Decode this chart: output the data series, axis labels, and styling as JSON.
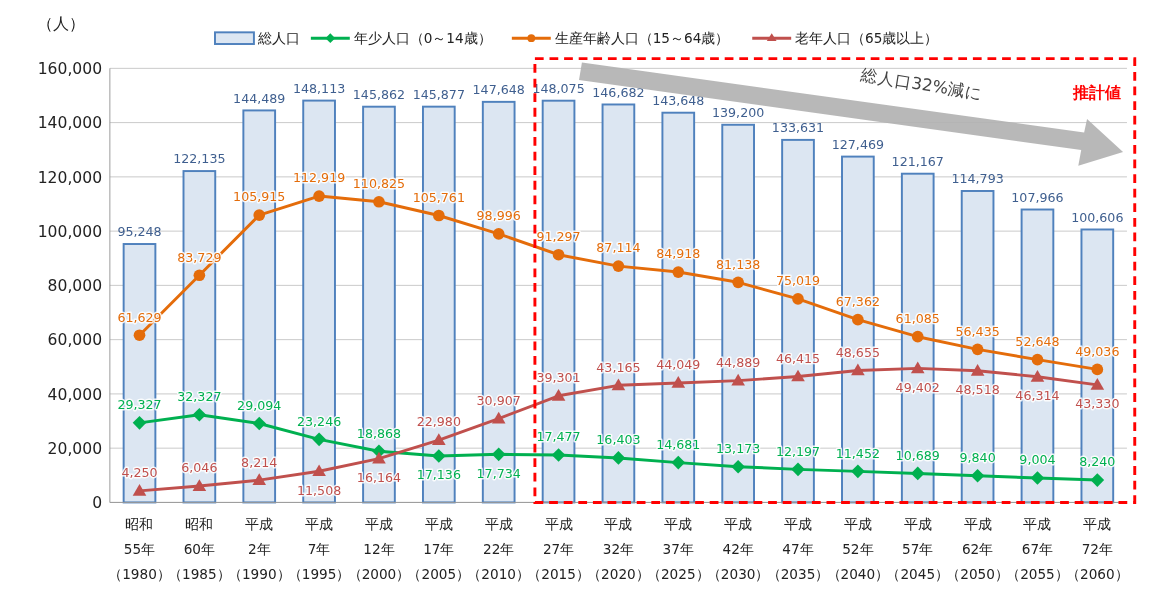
{
  "chart_data": {
    "type": "bar",
    "ylabel": "（人）",
    "categories": [
      "昭和55年（1980）",
      "昭和60年（1985）",
      "平成2年（1990）",
      "平成7年（1995）",
      "平成12年（2000）",
      "平成17年（2005）",
      "平成22年（2010）",
      "平成27年（2015）",
      "平成32年（2020）",
      "平成37年（2025）",
      "平成42年（2030）",
      "平成47年（2035）",
      "平成52年（2040）",
      "平成57年（2045）",
      "平成62年（2050）",
      "平成67年（2055）",
      "平成72年（2060）"
    ],
    "series": [
      {
        "name": "総人口",
        "color": "#dce6f2",
        "values": [
          95248,
          122135,
          144489,
          148113,
          145862,
          145877,
          147648,
          148075,
          146682,
          143648,
          139200,
          133631,
          127469,
          121167,
          114793,
          107966,
          100606
        ],
        "value_labels": [
          "95,248",
          "122,135",
          "144,489",
          "148,113",
          "145,862",
          "145,877",
          "147,648",
          "148,075",
          "146,682",
          "143,648",
          "139,200",
          "133,631",
          "127,469",
          "121,167",
          "114,793",
          "107,966",
          "100,606"
        ]
      },
      {
        "name": "年少人口（0～14歳）",
        "type": "line",
        "color": "#00b050",
        "marker": "diamond",
        "values": [
          29327,
          32327,
          29094,
          23246,
          18868,
          17136,
          17734,
          17477,
          16403,
          14681,
          13173,
          12197,
          11452,
          10689,
          9840,
          9004,
          8240
        ],
        "value_labels": [
          "29,327",
          "32,327",
          "29,094",
          "23,246",
          "18,868",
          "17,136",
          "17,734",
          "17,477",
          "16,403",
          "14,681",
          "13,173",
          "12,197",
          "11,452",
          "10,689",
          "9,840",
          "9,004",
          "8,240"
        ]
      },
      {
        "name": "生産年齢人口（15～64歳）",
        "type": "line",
        "color": "#e46c0a",
        "marker": "circle",
        "values": [
          61629,
          83729,
          105915,
          112919,
          110825,
          105761,
          98996,
          91297,
          87114,
          84918,
          81138,
          75019,
          67362,
          61085,
          56435,
          52648,
          49036
        ],
        "value_labels": [
          "61,629",
          "83,729",
          "105,915",
          "112,919",
          "110,825",
          "105,761",
          "98,996",
          "91,297",
          "87,114",
          "84,918",
          "81,138",
          "75,019",
          "67,362",
          "61,085",
          "56,435",
          "52,648",
          "49,036"
        ]
      },
      {
        "name": "老年人口（65歳以上）",
        "type": "line",
        "color": "#c0504d",
        "marker": "triangle",
        "values": [
          4250,
          6046,
          8214,
          11508,
          16164,
          22980,
          30907,
          39301,
          43165,
          44049,
          44889,
          46415,
          48655,
          49402,
          48518,
          46314,
          43330
        ],
        "value_labels": [
          "4,250",
          "6,046",
          "8,214",
          "11,508",
          "16,164",
          "22,980",
          "30,907",
          "39,301",
          "43,165",
          "44,049",
          "44,889",
          "46,415",
          "48,655",
          "49,402",
          "48,518",
          "46,314",
          "43,330"
        ]
      }
    ],
    "ylim": [
      0,
      160000
    ],
    "yticks": [
      {
        "value": 0,
        "label": "0"
      },
      {
        "value": 20000,
        "label": "20,000"
      },
      {
        "value": 40000,
        "label": "40,000"
      },
      {
        "value": 60000,
        "label": "60,000"
      },
      {
        "value": 80000,
        "label": "80,000"
      },
      {
        "value": 100000,
        "label": "100,000"
      },
      {
        "value": 120000,
        "label": "120,000"
      },
      {
        "value": 140000,
        "label": "140,000"
      },
      {
        "value": 160000,
        "label": "160,000"
      }
    ],
    "grid": "y",
    "legend": "top",
    "annotations": [
      "総人口32%減に",
      "推計値"
    ]
  }
}
